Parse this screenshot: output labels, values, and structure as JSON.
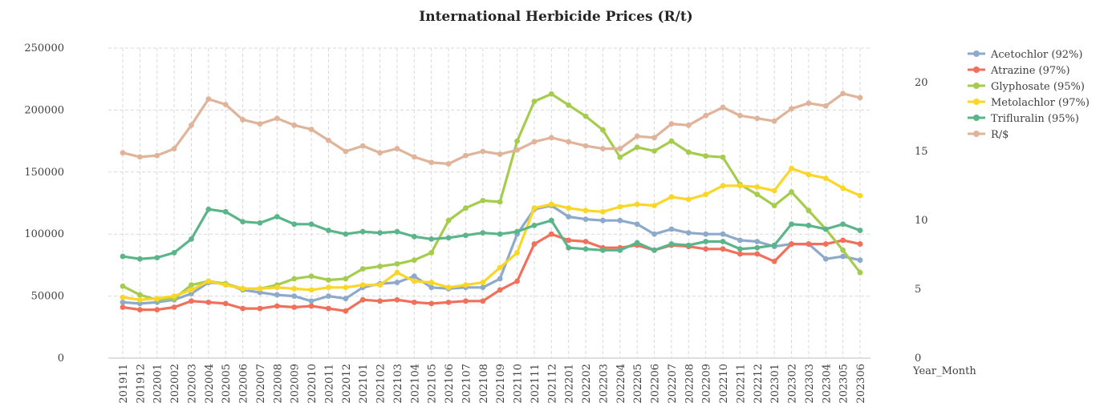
{
  "chart_data": {
    "type": "line",
    "title": "International Herbicide Prices (R/t)",
    "xlabel": "Year_Month",
    "ylabel": "",
    "y2label": "",
    "ylim": [
      0,
      250000
    ],
    "y2lim": [
      0,
      22.5
    ],
    "yticks": [
      "0",
      "50000",
      "100000",
      "150000",
      "200000",
      "250000"
    ],
    "y2ticks": [
      "0",
      "5",
      "10",
      "15",
      "20"
    ],
    "grid": true,
    "legend_position": "right",
    "categories": [
      "201911",
      "201912",
      "202001",
      "202002",
      "202003",
      "202004",
      "202005",
      "202006",
      "202007",
      "202008",
      "202009",
      "202010",
      "202011",
      "202012",
      "202101",
      "202102",
      "202103",
      "202104",
      "202105",
      "202106",
      "202107",
      "202108",
      "202109",
      "202110",
      "202111",
      "202112",
      "202201",
      "202202",
      "202203",
      "202204",
      "202205",
      "202206",
      "202207",
      "202208",
      "202209",
      "202210",
      "202211",
      "202212",
      "202301",
      "202302",
      "202303",
      "202304",
      "202305",
      "202306"
    ],
    "series": [
      {
        "name": "Acetochlor (92%)",
        "axis": "left",
        "color": "#8eaacb",
        "values": [
          45000,
          44000,
          45000,
          47000,
          52000,
          61000,
          60000,
          55000,
          53000,
          51000,
          50000,
          46000,
          50000,
          48000,
          57000,
          60000,
          61000,
          66000,
          57000,
          56000,
          57000,
          57000,
          64000,
          100000,
          120000,
          123000,
          114000,
          112000,
          111000,
          111000,
          108000,
          100000,
          104000,
          101000,
          100000,
          100000,
          95000,
          94000,
          90000,
          92000,
          92000,
          80000,
          82000,
          79000
        ]
      },
      {
        "name": "Atrazine (97%)",
        "axis": "left",
        "color": "#f0705c",
        "values": [
          41000,
          39000,
          39000,
          41000,
          46000,
          45000,
          44000,
          40000,
          40000,
          42000,
          41000,
          42000,
          40000,
          38000,
          47000,
          46000,
          47000,
          45000,
          44000,
          45000,
          46000,
          46000,
          55000,
          62000,
          92000,
          100000,
          95000,
          94000,
          89000,
          89000,
          91000,
          87000,
          91000,
          90000,
          88000,
          88000,
          84000,
          84000,
          78000,
          92000,
          92000,
          92000,
          95000,
          92000
        ]
      },
      {
        "name": "Glyphosate (95%)",
        "axis": "left",
        "color": "#a6cc4d",
        "values": [
          58000,
          51000,
          47000,
          48000,
          59000,
          62000,
          60000,
          56000,
          56000,
          59000,
          64000,
          66000,
          63000,
          64000,
          72000,
          74000,
          76000,
          79000,
          85000,
          111000,
          121000,
          127000,
          126000,
          175000,
          207000,
          213000,
          204000,
          195000,
          184000,
          162000,
          170000,
          167000,
          175000,
          166000,
          163000,
          162000,
          140000,
          132000,
          123000,
          134000,
          119000,
          104000,
          87000,
          69000
        ]
      },
      {
        "name": "Metolachlor (97%)",
        "axis": "left",
        "color": "#fbd627",
        "values": [
          49000,
          47000,
          48000,
          50000,
          55000,
          62000,
          59000,
          56000,
          56000,
          57000,
          56000,
          55000,
          57000,
          57000,
          59000,
          59000,
          69000,
          62000,
          61000,
          57000,
          59000,
          61000,
          73000,
          85000,
          121000,
          124000,
          121000,
          119000,
          118000,
          122000,
          124000,
          123000,
          130000,
          128000,
          132000,
          139000,
          139000,
          138000,
          135000,
          153000,
          148000,
          145000,
          137000,
          131000
        ]
      },
      {
        "name": "Trifluralin (95%)",
        "axis": "left",
        "color": "#5ab58a",
        "values": [
          82000,
          80000,
          81000,
          85000,
          96000,
          120000,
          118000,
          110000,
          109000,
          114000,
          108000,
          108000,
          103000,
          100000,
          102000,
          101000,
          102000,
          98000,
          96000,
          97000,
          99000,
          101000,
          100000,
          102000,
          107000,
          111000,
          89000,
          88000,
          87000,
          87000,
          93000,
          87000,
          92000,
          91000,
          94000,
          94000,
          88000,
          89000,
          91000,
          108000,
          107000,
          104000,
          108000,
          103000
        ]
      },
      {
        "name": "R/$",
        "axis": "right",
        "color": "#dfb49a",
        "values": [
          14.9,
          14.6,
          14.7,
          15.2,
          16.9,
          18.8,
          18.4,
          17.3,
          17.0,
          17.4,
          16.9,
          16.6,
          15.8,
          15.0,
          15.4,
          14.9,
          15.2,
          14.6,
          14.2,
          14.1,
          14.7,
          15.0,
          14.8,
          15.1,
          15.7,
          16.0,
          15.7,
          15.4,
          15.2,
          15.2,
          16.1,
          16.0,
          17.0,
          16.9,
          17.6,
          18.2,
          17.6,
          17.4,
          17.2,
          18.1,
          18.5,
          18.3,
          19.2,
          18.9
        ]
      }
    ]
  }
}
